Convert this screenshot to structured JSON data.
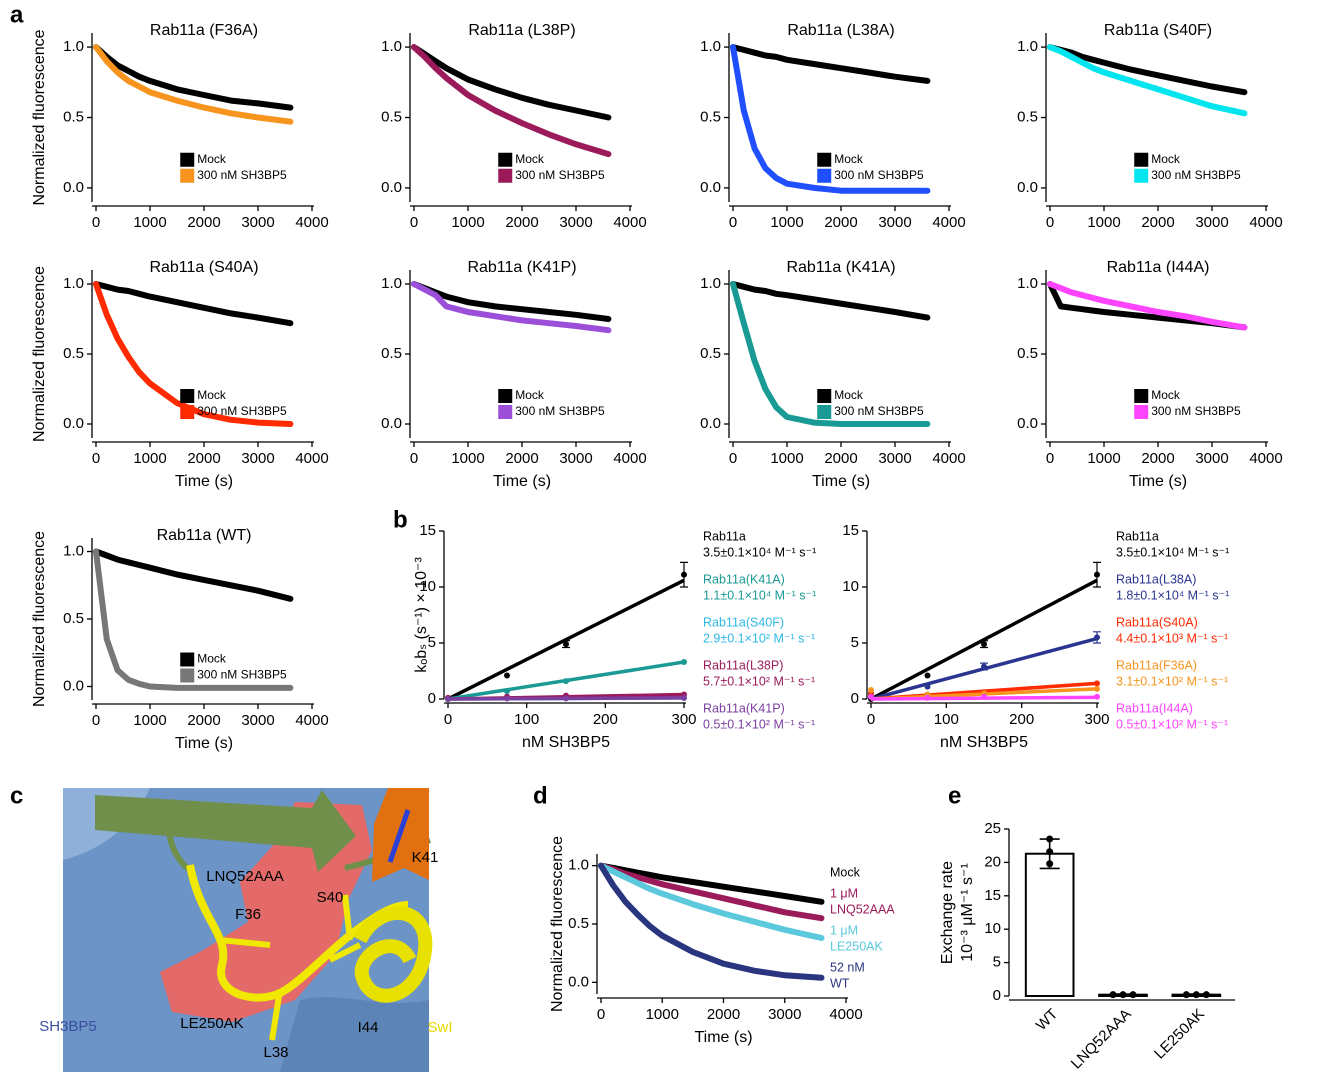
{
  "panel_labels": [
    "a",
    "b",
    "c",
    "d",
    "e"
  ],
  "structure": {
    "labels": [
      "K41",
      "LNQ52AAA",
      "S40",
      "F36",
      "LE250AK",
      "I44",
      "L38",
      "SH3BP5",
      "SwI"
    ]
  },
  "chart_data": [
    {
      "type": "line",
      "title": "Rab11a (F36A)",
      "y_label": "Normalized fluorescence",
      "x": [
        0,
        200,
        400,
        600,
        800,
        1000,
        1500,
        2000,
        2500,
        3000,
        3600
      ],
      "series": [
        {
          "name": "Mock",
          "color": "#000000",
          "values": [
            1.0,
            0.93,
            0.87,
            0.83,
            0.79,
            0.76,
            0.7,
            0.66,
            0.62,
            0.6,
            0.57
          ]
        },
        {
          "name": "300 nM SH3BP5",
          "color": "#f7941d",
          "values": [
            1.0,
            0.9,
            0.82,
            0.76,
            0.72,
            0.68,
            0.62,
            0.57,
            0.53,
            0.5,
            0.47
          ]
        }
      ],
      "xlim": [
        0,
        4000
      ],
      "xticks": [
        0,
        1000,
        2000,
        3000,
        4000
      ],
      "ylim": [
        -0.1,
        1.1
      ],
      "yticks": [
        {
          "value": 0,
          "label": "0.0"
        },
        {
          "value": 0.5,
          "label": "0.5"
        },
        {
          "value": 1,
          "label": "1.0"
        }
      ],
      "legend": "lower-center"
    },
    {
      "type": "line",
      "title": "Rab11a (L38P)",
      "x": [
        0,
        200,
        400,
        600,
        800,
        1000,
        1500,
        2000,
        2500,
        3000,
        3600
      ],
      "series": [
        {
          "name": "Mock",
          "color": "#000000",
          "values": [
            1.0,
            0.95,
            0.9,
            0.85,
            0.81,
            0.77,
            0.7,
            0.64,
            0.59,
            0.55,
            0.5
          ]
        },
        {
          "name": "300 nM SH3BP5",
          "color": "#9b1b5a",
          "values": [
            1.0,
            0.93,
            0.85,
            0.78,
            0.72,
            0.66,
            0.55,
            0.46,
            0.38,
            0.31,
            0.24
          ]
        }
      ],
      "xlim": [
        0,
        4000
      ],
      "xticks": [
        0,
        1000,
        2000,
        3000,
        4000
      ],
      "ylim": [
        -0.1,
        1.1
      ],
      "yticks": [
        {
          "value": 0,
          "label": "0.0"
        },
        {
          "value": 0.5,
          "label": "0.5"
        },
        {
          "value": 1,
          "label": "1.0"
        }
      ],
      "legend": "lower-center"
    },
    {
      "type": "line",
      "title": "Rab11a (L38A)",
      "x": [
        0,
        200,
        400,
        600,
        800,
        1000,
        1500,
        2000,
        2500,
        3000,
        3600
      ],
      "series": [
        {
          "name": "Mock",
          "color": "#000000",
          "values": [
            1.0,
            0.98,
            0.96,
            0.94,
            0.93,
            0.91,
            0.88,
            0.85,
            0.82,
            0.79,
            0.76
          ]
        },
        {
          "name": "300 nM SH3BP5",
          "color": "#1f4fff",
          "values": [
            1.0,
            0.55,
            0.28,
            0.14,
            0.07,
            0.03,
            0.0,
            -0.02,
            -0.02,
            -0.02,
            -0.02
          ]
        }
      ],
      "xlim": [
        0,
        4000
      ],
      "xticks": [
        0,
        1000,
        2000,
        3000,
        4000
      ],
      "ylim": [
        -0.1,
        1.1
      ],
      "yticks": [
        {
          "value": 0,
          "label": "0.0"
        },
        {
          "value": 0.5,
          "label": "0.5"
        },
        {
          "value": 1,
          "label": "1.0"
        }
      ],
      "legend": "lower-center"
    },
    {
      "type": "line",
      "title": "Rab11a (S40F)",
      "x": [
        0,
        200,
        400,
        600,
        800,
        1000,
        1500,
        2000,
        2500,
        3000,
        3600
      ],
      "series": [
        {
          "name": "Mock",
          "color": "#000000",
          "values": [
            1.0,
            0.98,
            0.96,
            0.93,
            0.91,
            0.89,
            0.84,
            0.8,
            0.76,
            0.72,
            0.68
          ]
        },
        {
          "name": "300 nM SH3BP5",
          "color": "#00e5ee",
          "values": [
            1.0,
            0.97,
            0.93,
            0.89,
            0.85,
            0.82,
            0.76,
            0.7,
            0.64,
            0.58,
            0.53
          ]
        }
      ],
      "xlim": [
        0,
        4000
      ],
      "xticks": [
        0,
        1000,
        2000,
        3000,
        4000
      ],
      "ylim": [
        -0.1,
        1.1
      ],
      "yticks": [
        {
          "value": 0,
          "label": "0.0"
        },
        {
          "value": 0.5,
          "label": "0.5"
        },
        {
          "value": 1,
          "label": "1.0"
        }
      ],
      "legend": "lower-center"
    },
    {
      "type": "line",
      "title": "Rab11a (S40A)",
      "y_label": "Normalized fluorescence",
      "x_label": "Time (s)",
      "x": [
        0,
        200,
        400,
        600,
        800,
        1000,
        1500,
        2000,
        2500,
        3000,
        3600
      ],
      "series": [
        {
          "name": "Mock",
          "color": "#000000",
          "values": [
            1.0,
            0.98,
            0.96,
            0.95,
            0.93,
            0.91,
            0.87,
            0.83,
            0.79,
            0.76,
            0.72
          ]
        },
        {
          "name": "300 nM SH3BP5",
          "color": "#ff2a00",
          "values": [
            1.0,
            0.78,
            0.61,
            0.48,
            0.37,
            0.29,
            0.15,
            0.07,
            0.03,
            0.01,
            0.0
          ]
        }
      ],
      "xlim": [
        0,
        4000
      ],
      "xticks": [
        0,
        1000,
        2000,
        3000,
        4000
      ],
      "ylim": [
        -0.1,
        1.1
      ],
      "yticks": [
        {
          "value": 0,
          "label": "0.0"
        },
        {
          "value": 0.5,
          "label": "0.5"
        },
        {
          "value": 1,
          "label": "1.0"
        }
      ],
      "legend": "lower-center"
    },
    {
      "type": "line",
      "title": "Rab11a (K41P)",
      "x_label": "Time (s)",
      "x": [
        0,
        200,
        400,
        600,
        800,
        1000,
        1500,
        2000,
        2500,
        3000,
        3600
      ],
      "series": [
        {
          "name": "Mock",
          "color": "#000000",
          "values": [
            1.0,
            0.97,
            0.94,
            0.91,
            0.89,
            0.87,
            0.84,
            0.82,
            0.8,
            0.78,
            0.75
          ]
        },
        {
          "name": "300 nM SH3BP5",
          "color": "#9b4fd8",
          "values": [
            1.0,
            0.96,
            0.92,
            0.84,
            0.82,
            0.8,
            0.77,
            0.74,
            0.72,
            0.7,
            0.67
          ]
        }
      ],
      "xlim": [
        0,
        4000
      ],
      "xticks": [
        0,
        1000,
        2000,
        3000,
        4000
      ],
      "ylim": [
        -0.1,
        1.1
      ],
      "yticks": [
        {
          "value": 0,
          "label": "0.0"
        },
        {
          "value": 0.5,
          "label": "0.5"
        },
        {
          "value": 1,
          "label": "1.0"
        }
      ],
      "legend": "lower-center"
    },
    {
      "type": "line",
      "title": "Rab11a (K41A)",
      "x_label": "Time (s)",
      "x": [
        0,
        200,
        400,
        600,
        800,
        1000,
        1500,
        2000,
        2500,
        3000,
        3600
      ],
      "series": [
        {
          "name": "Mock",
          "color": "#000000",
          "values": [
            1.0,
            0.98,
            0.96,
            0.95,
            0.93,
            0.92,
            0.89,
            0.86,
            0.83,
            0.8,
            0.76
          ]
        },
        {
          "name": "300 nM SH3BP5",
          "color": "#1a9a94",
          "values": [
            1.0,
            0.72,
            0.45,
            0.25,
            0.12,
            0.05,
            0.01,
            0.0,
            0.0,
            0.0,
            0.0
          ]
        }
      ],
      "xlim": [
        0,
        4000
      ],
      "xticks": [
        0,
        1000,
        2000,
        3000,
        4000
      ],
      "ylim": [
        -0.1,
        1.1
      ],
      "yticks": [
        {
          "value": 0,
          "label": "0.0"
        },
        {
          "value": 0.5,
          "label": "0.5"
        },
        {
          "value": 1,
          "label": "1.0"
        }
      ],
      "legend": "lower-center"
    },
    {
      "type": "line",
      "title": "Rab11a (I44A)",
      "x_label": "Time (s)",
      "x": [
        0,
        200,
        400,
        600,
        800,
        1000,
        1500,
        2000,
        2500,
        3000,
        3600
      ],
      "series": [
        {
          "name": "Mock",
          "color": "#000000",
          "values": [
            1.0,
            0.84,
            0.83,
            0.82,
            0.81,
            0.8,
            0.78,
            0.76,
            0.74,
            0.72,
            0.69
          ]
        },
        {
          "name": "300 nM SH3BP5",
          "color": "#ff44ff",
          "values": [
            1.0,
            0.97,
            0.94,
            0.92,
            0.9,
            0.88,
            0.84,
            0.8,
            0.77,
            0.73,
            0.69
          ]
        }
      ],
      "xlim": [
        0,
        4000
      ],
      "xticks": [
        0,
        1000,
        2000,
        3000,
        4000
      ],
      "ylim": [
        -0.1,
        1.1
      ],
      "yticks": [
        {
          "value": 0,
          "label": "0.0"
        },
        {
          "value": 0.5,
          "label": "0.5"
        },
        {
          "value": 1,
          "label": "1.0"
        }
      ],
      "legend": "lower-center"
    },
    {
      "type": "line",
      "title": "Rab11a (WT)",
      "y_label": "Normalized fluorescence",
      "x_label": "Time (s)",
      "x": [
        0,
        200,
        400,
        600,
        800,
        1000,
        1500,
        2000,
        2500,
        3000,
        3600
      ],
      "series": [
        {
          "name": "Mock",
          "color": "#000000",
          "values": [
            1.0,
            0.97,
            0.94,
            0.92,
            0.9,
            0.88,
            0.83,
            0.79,
            0.75,
            0.71,
            0.65
          ]
        },
        {
          "name": "300 nM SH3BP5",
          "color": "#777777",
          "values": [
            1.0,
            0.35,
            0.12,
            0.05,
            0.02,
            0.0,
            -0.01,
            -0.01,
            -0.01,
            -0.01,
            -0.01
          ]
        }
      ],
      "xlim": [
        0,
        4000
      ],
      "xticks": [
        0,
        1000,
        2000,
        3000,
        4000
      ],
      "ylim": [
        -0.1,
        1.1
      ],
      "yticks": [
        {
          "value": 0,
          "label": "0.0"
        },
        {
          "value": 0.5,
          "label": "0.5"
        },
        {
          "value": 1,
          "label": "1.0"
        }
      ],
      "legend": "lower-center"
    },
    {
      "type": "scatter",
      "y_label": "kₒbₛ (s⁻¹) × 10⁻³",
      "x_label": "nM SH3BP5",
      "x": [
        0,
        75,
        150,
        300
      ],
      "series": [
        {
          "name": "Rab11a",
          "rate": "3.5±0.1×10⁴ M⁻¹ s⁻¹",
          "color": "#000000",
          "values": [
            0,
            2.1,
            4.9,
            11.1
          ],
          "errors": [
            0,
            0,
            0.3,
            1.1
          ],
          "fit": [
            0,
            10.6
          ]
        },
        {
          "name": "Rab11a(K41A)",
          "rate": "1.1±0.1×10⁴ M⁻¹ s⁻¹",
          "color": "#1a9a94",
          "values": [
            0,
            0.7,
            1.6,
            3.3
          ],
          "fit": [
            0,
            3.3
          ]
        },
        {
          "name": "Rab11a(S40F)",
          "rate": "2.9±0.1×10² M⁻¹ s⁻¹",
          "color": "#2fb8e6",
          "values": [
            0,
            0.1,
            0.1,
            0.1
          ],
          "fit": [
            0,
            0.1
          ]
        },
        {
          "name": "Rab11a(L38P)",
          "rate": "5.7±0.1×10² M⁻¹ s⁻¹",
          "color": "#9b1b5a",
          "values": [
            0.1,
            0.2,
            0.3,
            0.4
          ],
          "fit": [
            0,
            0.4
          ]
        },
        {
          "name": "Rab11a(K41P)",
          "rate": "0.5±0.1×10² M⁻¹ s⁻¹",
          "color": "#7b3fa0",
          "values": [
            0,
            0.05,
            0.05,
            0.1
          ],
          "fit": [
            0,
            0.1
          ]
        }
      ],
      "xlim": [
        0,
        300
      ],
      "xticks": [
        0,
        100,
        200,
        300
      ],
      "ylim": [
        0,
        15
      ],
      "yticks": [
        0,
        5,
        10,
        15
      ],
      "legend": "right"
    },
    {
      "type": "scatter",
      "x_label": "nM SH3BP5",
      "x": [
        0,
        75,
        150,
        300
      ],
      "series": [
        {
          "name": "Rab11a",
          "rate": "3.5±0.1×10⁴ M⁻¹ s⁻¹",
          "color": "#000000",
          "values": [
            0,
            2.1,
            4.9,
            11.1
          ],
          "errors": [
            0,
            0,
            0.3,
            1.1
          ],
          "fit": [
            0,
            10.6
          ]
        },
        {
          "name": "Rab11a(L38A)",
          "rate": "1.8±0.1×10⁴ M⁻¹ s⁻¹",
          "color": "#2a3590",
          "values": [
            0.5,
            1.1,
            2.9,
            5.5
          ],
          "errors": [
            0,
            0,
            0.3,
            0.5
          ],
          "fit": [
            0,
            5.4
          ]
        },
        {
          "name": "Rab11a(S40A)",
          "rate": "4.4±0.1×10³ M⁻¹ s⁻¹",
          "color": "#ff2a00",
          "values": [
            0.4,
            0.3,
            0.6,
            1.4
          ],
          "fit": [
            0,
            1.4
          ]
        },
        {
          "name": "Rab11a(F36A)",
          "rate": "3.1±0.1×10² M⁻¹ s⁻¹",
          "color": "#f7941d",
          "values": [
            0.8,
            0.4,
            0.5,
            0.9
          ],
          "fit": [
            0,
            0.9
          ]
        },
        {
          "name": "Rab11a(I44A)",
          "rate": "0.5±0.1×10² M⁻¹ s⁻¹",
          "color": "#ff44ff",
          "values": [
            0.2,
            0.1,
            0.2,
            0.2
          ],
          "fit": [
            0,
            0.15
          ]
        }
      ],
      "xlim": [
        0,
        300
      ],
      "xticks": [
        0,
        100,
        200,
        300
      ],
      "ylim": [
        0,
        15
      ],
      "yticks": [
        0,
        5,
        10,
        15
      ],
      "legend": "right"
    },
    {
      "type": "line",
      "y_label": "Normalized fluorescence",
      "x_label": "Time (s)",
      "x": [
        0,
        200,
        400,
        600,
        800,
        1000,
        1500,
        2000,
        2500,
        3000,
        3600
      ],
      "series": [
        {
          "name": [
            "Mock"
          ],
          "color": "#000000",
          "values": [
            1.0,
            0.98,
            0.96,
            0.94,
            0.92,
            0.9,
            0.86,
            0.82,
            0.78,
            0.74,
            0.69
          ]
        },
        {
          "name": [
            "1 μM",
            "LNQ52AAA"
          ],
          "color": "#9b1b5a",
          "values": [
            1.0,
            0.97,
            0.93,
            0.9,
            0.87,
            0.84,
            0.78,
            0.72,
            0.66,
            0.6,
            0.55
          ]
        },
        {
          "name": [
            "1 μM",
            "LE250AK"
          ],
          "color": "#5bc8dc",
          "values": [
            1.0,
            0.95,
            0.9,
            0.85,
            0.8,
            0.76,
            0.67,
            0.59,
            0.52,
            0.45,
            0.38
          ]
        },
        {
          "name": [
            "52 nM",
            "WT"
          ],
          "color": "#2a3580",
          "values": [
            1.0,
            0.83,
            0.69,
            0.58,
            0.48,
            0.4,
            0.26,
            0.16,
            0.1,
            0.06,
            0.04
          ]
        }
      ],
      "xlim": [
        0,
        4000
      ],
      "xticks": [
        0,
        1000,
        2000,
        3000,
        4000
      ],
      "ylim": [
        -0.1,
        1.1
      ],
      "yticks": [
        {
          "value": 0,
          "label": "0.0"
        },
        {
          "value": 0.5,
          "label": "0.5"
        },
        {
          "value": 1,
          "label": "1.0"
        }
      ],
      "legend": "right"
    },
    {
      "type": "bar",
      "y_label": [
        "Exchange rate",
        "10⁻³ μM⁻¹ s⁻¹"
      ],
      "categories": [
        "WT",
        "LNQ52AAA",
        "LE250AK"
      ],
      "values": [
        21.3,
        0.2,
        0.2
      ],
      "errors": [
        2.2,
        0.1,
        0.1
      ],
      "points": [
        [
          23.5,
          19.8,
          21.6
        ],
        [
          0.2,
          0.2,
          0.2
        ],
        [
          0.2,
          0.2,
          0.2
        ]
      ],
      "color": "#000000",
      "ylim": [
        0,
        25
      ],
      "yticks": [
        0,
        5,
        10,
        15,
        20,
        25
      ]
    }
  ]
}
